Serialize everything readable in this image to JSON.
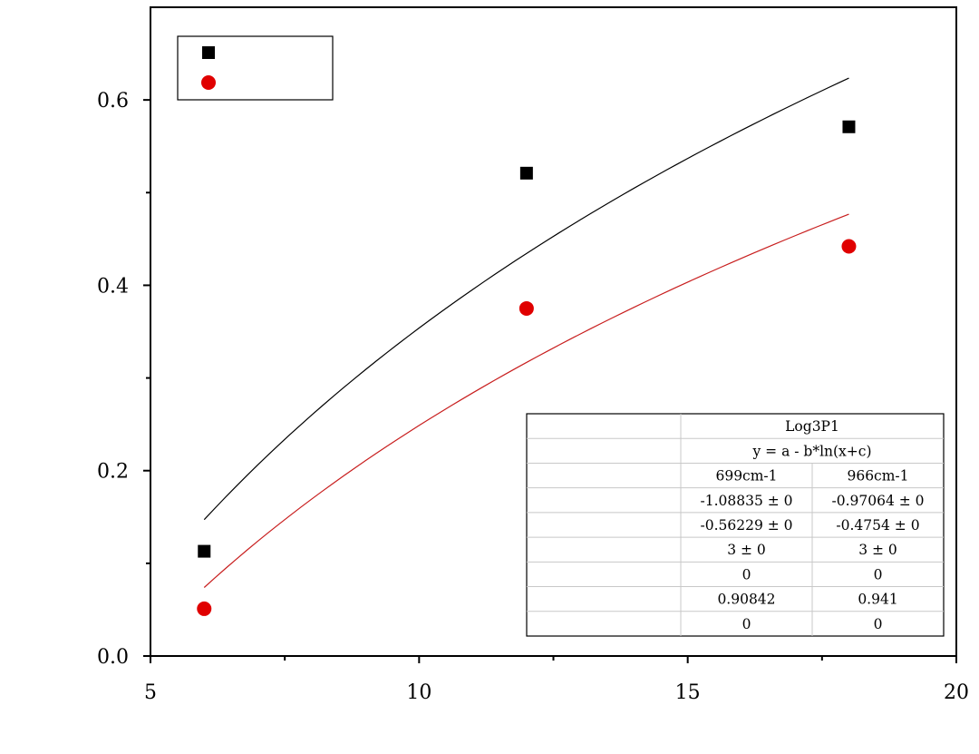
{
  "chart_data": {
    "type": "scatter",
    "title": "",
    "xlabel": "",
    "ylabel": "",
    "xlim": [
      5,
      20
    ],
    "ylim": [
      0,
      0.7
    ],
    "x_ticks": [
      5,
      10,
      15,
      20
    ],
    "x_tick_labels": [
      "5",
      "10",
      "15",
      "20"
    ],
    "y_ticks": [
      0.0,
      0.2,
      0.4,
      0.6
    ],
    "y_tick_labels": [
      "0.0",
      "0.2",
      "0.4",
      "0.6"
    ],
    "grid": false,
    "legend": {
      "placement": "top-left",
      "entries": [
        {
          "marker": "square",
          "color": "#000000",
          "label": ""
        },
        {
          "marker": "circle",
          "color": "#e00000",
          "label": ""
        }
      ]
    },
    "series": [
      {
        "marker": "square",
        "color": "#000000",
        "points": [
          {
            "x": 6,
            "y": 0.113
          },
          {
            "x": 12,
            "y": 0.521
          },
          {
            "x": 18,
            "y": 0.571
          }
        ],
        "fit": {
          "model": "y = a - b*ln(x+c)",
          "a": -1.08835,
          "b": -0.56229,
          "c": 3,
          "color": "#000000"
        }
      },
      {
        "marker": "circle",
        "color": "#e00000",
        "points": [
          {
            "x": 6,
            "y": 0.051
          },
          {
            "x": 12,
            "y": 0.375
          },
          {
            "x": 18,
            "y": 0.442
          }
        ],
        "fit": {
          "model": "y = a - b*ln(x+c)",
          "a": -0.97064,
          "b": -0.4754,
          "c": 3,
          "color": "#c81e1e"
        }
      }
    ],
    "fit_table": {
      "rows": [
        [
          "",
          "Log3P1"
        ],
        [
          "",
          "y = a - b*ln(x+c)"
        ],
        [
          "",
          "699cm-1",
          "966cm-1"
        ],
        [
          "",
          "-1.08835 ± 0",
          "-0.97064 ± 0"
        ],
        [
          "",
          "-0.56229 ± 0",
          "-0.4754 ± 0"
        ],
        [
          "",
          "3 ± 0",
          "3 ± 0"
        ],
        [
          "",
          "0",
          "0"
        ],
        [
          "",
          "0.90842",
          "0.941"
        ],
        [
          "",
          "0",
          "0"
        ]
      ]
    }
  }
}
